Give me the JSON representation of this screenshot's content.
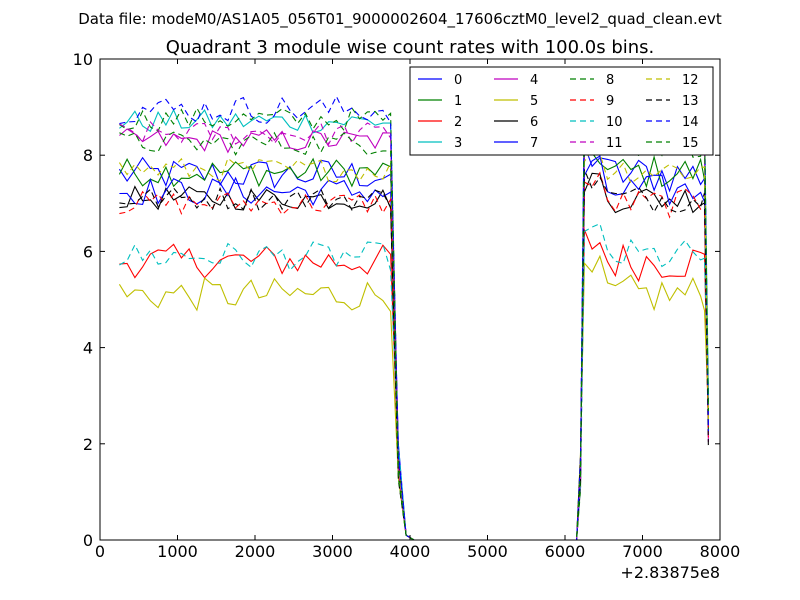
{
  "chart_data": {
    "type": "line",
    "suptitle": "Data file: modeM0/AS1A05_056T01_9000002604_17606cztM0_level2_quad_clean.evt",
    "title": "Quadrant 3 module wise count rates with 100.0s bins.",
    "xlabel": "",
    "ylabel": "",
    "x_offset_label": "+2.83875e8",
    "xlim": [
      0,
      8000
    ],
    "ylim": [
      0,
      10
    ],
    "xticks": [
      0,
      1000,
      2000,
      3000,
      4000,
      5000,
      6000,
      7000,
      8000
    ],
    "yticks": [
      0,
      2,
      4,
      6,
      8,
      10
    ],
    "legend": {
      "location": "top-right",
      "columns": 4
    },
    "series": [
      {
        "name": "0",
        "color": "#0000ff",
        "dash": "solid",
        "level": 7.6,
        "noise": 0.35
      },
      {
        "name": "1",
        "color": "#008000",
        "dash": "solid",
        "level": 7.65,
        "noise": 0.3
      },
      {
        "name": "2",
        "color": "#ff0000",
        "dash": "solid",
        "level": 5.8,
        "noise": 0.35
      },
      {
        "name": "3",
        "color": "#00bfbf",
        "dash": "solid",
        "level": 8.7,
        "noise": 0.25
      },
      {
        "name": "4",
        "color": "#bf00bf",
        "dash": "solid",
        "level": 8.3,
        "noise": 0.25
      },
      {
        "name": "5",
        "color": "#bfbf00",
        "dash": "solid",
        "level": 5.1,
        "noise": 0.35
      },
      {
        "name": "6",
        "color": "#000000",
        "dash": "solid",
        "level": 7.1,
        "noise": 0.25
      },
      {
        "name": "7",
        "color": "#0000ff",
        "dash": "solid",
        "level": 7.25,
        "noise": 0.3
      },
      {
        "name": "8",
        "color": "#008000",
        "dash": "dashed",
        "level": 8.75,
        "noise": 0.25
      },
      {
        "name": "9",
        "color": "#ff0000",
        "dash": "dashed",
        "level": 7.0,
        "noise": 0.25
      },
      {
        "name": "10",
        "color": "#00bfbf",
        "dash": "dashed",
        "level": 5.9,
        "noise": 0.3
      },
      {
        "name": "11",
        "color": "#bf00bf",
        "dash": "dashed",
        "level": 8.45,
        "noise": 0.25
      },
      {
        "name": "12",
        "color": "#bfbf00",
        "dash": "dashed",
        "level": 7.7,
        "noise": 0.25
      },
      {
        "name": "13",
        "color": "#000000",
        "dash": "dashed",
        "level": 7.1,
        "noise": 0.25
      },
      {
        "name": "14",
        "color": "#0000ff",
        "dash": "dashed",
        "level": 8.95,
        "noise": 0.3
      },
      {
        "name": "15",
        "color": "#008000",
        "dash": "dashed",
        "level": 8.25,
        "noise": 0.25
      }
    ],
    "segments": [
      {
        "x_start": 250,
        "x_end": 3750,
        "step": 100,
        "state": "active"
      },
      {
        "x_start": 3800,
        "x_end": 6150,
        "state": "drop-to-zero"
      },
      {
        "x_start": 6250,
        "x_end": 7750,
        "step": 100,
        "state": "active"
      },
      {
        "x_start": 7850,
        "state": "end-drop",
        "value": 2.5
      }
    ]
  }
}
